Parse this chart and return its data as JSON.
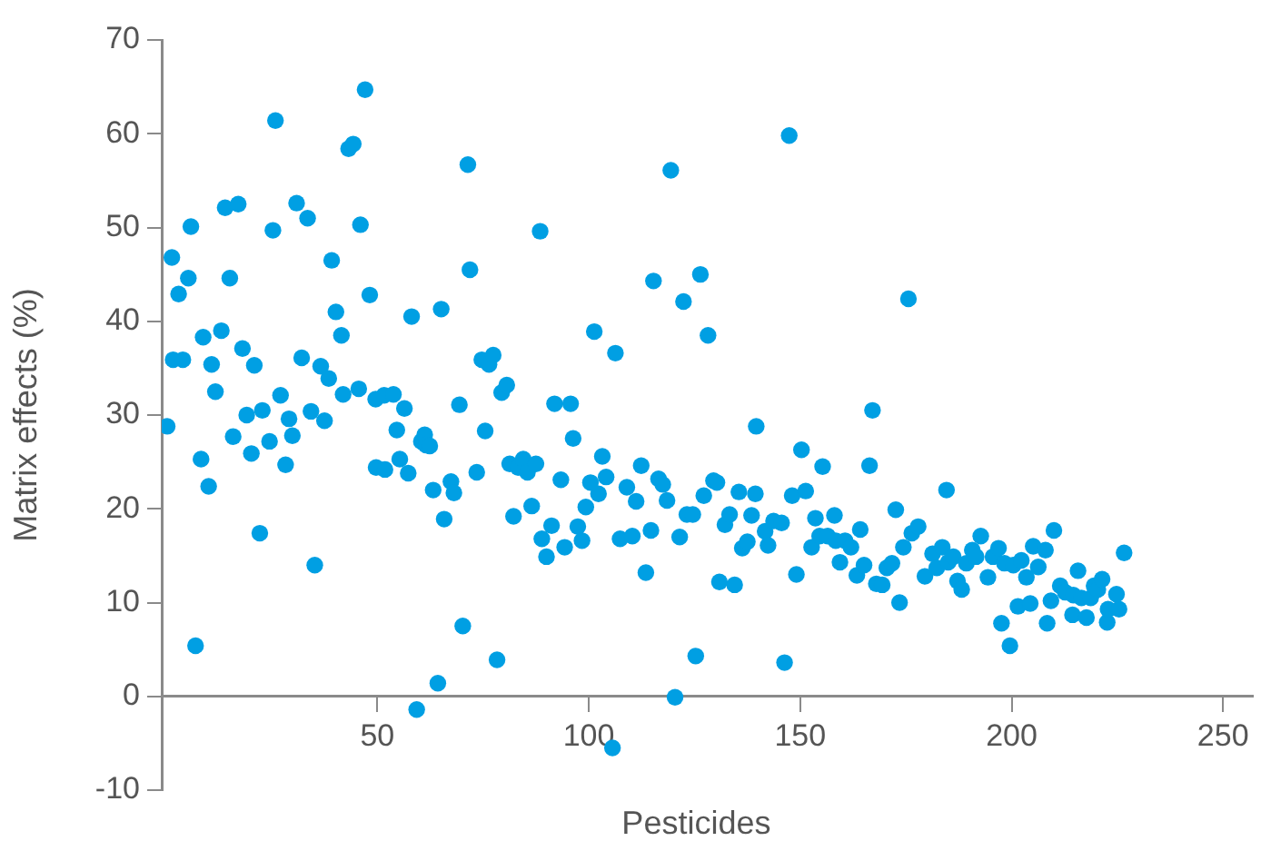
{
  "chart_data": {
    "type": "scatter",
    "xlabel": "Pesticides",
    "ylabel": "Matrix effects (%)",
    "color": "#009fe3",
    "marker": "circle",
    "xlim": [
      -1,
      257
    ],
    "xticks": [
      50,
      100,
      150,
      200,
      250
    ],
    "ylim": [
      -10,
      70
    ],
    "yticks": [
      -10,
      0,
      10,
      20,
      30,
      40,
      50,
      60,
      70
    ],
    "x": [
      0.3,
      1.4,
      1.7,
      3,
      4,
      5.3,
      5.9,
      7,
      8.3,
      8.8,
      10.1,
      10.8,
      11.7,
      13.1,
      14,
      15.1,
      15.9,
      17.1,
      18.1,
      19.1,
      20.2,
      20.9,
      22.2,
      22.8,
      24.5,
      25.3,
      25.9,
      27.1,
      28.3,
      29.1,
      29.9,
      30.9,
      32.1,
      33.5,
      34.3,
      35.2,
      36.6,
      37.5,
      38.5,
      39.2,
      40.2,
      41.5,
      41.9,
      43.2,
      44.3,
      45.6,
      46,
      47.1,
      48.2,
      49.6,
      49.7,
      51.8,
      51.6,
      53.8,
      54.6,
      55.3,
      56.4,
      57.3,
      58.1,
      59.3,
      60.4,
      61.2,
      61.5,
      62.4,
      63.2,
      64.3,
      65.1,
      65.8,
      67.4,
      68.1,
      69.4,
      70.2,
      71.4,
      71.9,
      73.5,
      74.7,
      75.5,
      76.4,
      77.4,
      78.3,
      79.4,
      80.6,
      81.3,
      82.2,
      83.3,
      84.5,
      85.5,
      86.5,
      87.5,
      88.5,
      88.9,
      90,
      91.2,
      91.9,
      93.4,
      94.3,
      95.7,
      96.3,
      97.4,
      98.4,
      99.3,
      100.4,
      101.3,
      102.3,
      103.2,
      104.1,
      105.6,
      106.3,
      107.4,
      109,
      110.3,
      111.2,
      112.4,
      113.5,
      114.7,
      115.3,
      116.5,
      117.5,
      118.5,
      119.4,
      120.4,
      121.5,
      122.4,
      123.2,
      124.6,
      125.3,
      126.4,
      127.2,
      128.2,
      129.5,
      130.3,
      130.9,
      132.2,
      133.3,
      134.5,
      135.5,
      136.3,
      137.5,
      138.5,
      139.4,
      139.6,
      141.7,
      142.4,
      143.7,
      145.6,
      146.3,
      147.4,
      148.1,
      149.1,
      150.3,
      151.3,
      152.7,
      153.6,
      154.6,
      155.3,
      156.5,
      158.1,
      158.4,
      159.4,
      160.6,
      162,
      163.4,
      164.2,
      165.1,
      166.4,
      167.1,
      168,
      169.4,
      170.5,
      171.7,
      172.6,
      173.5,
      174.4,
      175.6,
      176.4,
      177.9,
      179.5,
      181.3,
      182.3,
      183.6,
      184.6,
      185,
      186.2,
      187.2,
      188.2,
      189.3,
      190.7,
      191.6,
      192.7,
      194.4,
      195.6,
      196.9,
      197.6,
      198.3,
      199.6,
      200.4,
      201.5,
      202.3,
      203.5,
      204.4,
      205.1,
      206.3,
      208,
      208.4,
      209.3,
      210,
      211.5,
      212.7,
      214.4,
      214.6,
      215.7,
      216.5,
      217.7,
      218.7,
      219.5,
      220.4,
      221.4,
      222.6,
      222.8,
      224.8,
      225.4,
      226.6
    ],
    "values": [
      28.8,
      46.8,
      35.9,
      42.9,
      35.9,
      44.6,
      50.1,
      5.4,
      25.3,
      38.3,
      22.4,
      35.4,
      32.5,
      39,
      52.1,
      44.6,
      27.7,
      52.5,
      37.1,
      30,
      25.9,
      35.3,
      17.4,
      30.5,
      27.2,
      49.7,
      61.4,
      32.1,
      24.7,
      29.6,
      27.8,
      52.6,
      36.1,
      51,
      30.4,
      14,
      35.2,
      29.4,
      33.9,
      46.5,
      41,
      38.5,
      32.2,
      58.4,
      58.9,
      32.8,
      50.3,
      64.7,
      42.8,
      31.7,
      24.4,
      24.2,
      32.1,
      32.2,
      28.4,
      25.3,
      30.7,
      23.8,
      40.5,
      -1.4,
      27.2,
      27.9,
      26.8,
      26.7,
      22,
      1.4,
      41.3,
      18.9,
      22.9,
      21.7,
      31.1,
      7.5,
      56.7,
      45.5,
      23.9,
      35.9,
      28.3,
      35.4,
      36.4,
      3.9,
      32.4,
      33.2,
      24.8,
      19.2,
      24.4,
      25.3,
      23.9,
      20.3,
      24.8,
      49.6,
      16.8,
      14.9,
      18.2,
      31.2,
      23.1,
      15.9,
      31.2,
      27.5,
      18.1,
      16.6,
      20.2,
      22.8,
      38.9,
      21.6,
      25.6,
      23.4,
      -5.5,
      36.6,
      16.8,
      22.3,
      17.1,
      20.8,
      24.6,
      13.2,
      17.7,
      44.3,
      23.2,
      22.6,
      20.9,
      56.1,
      -0.1,
      17,
      42.1,
      19.4,
      19.4,
      4.3,
      45,
      21.4,
      38.5,
      23,
      22.8,
      12.2,
      18.3,
      19.4,
      11.9,
      21.8,
      15.8,
      16.5,
      19.3,
      21.6,
      28.8,
      17.6,
      16.1,
      18.7,
      18.5,
      3.6,
      59.8,
      21.4,
      13,
      26.3,
      21.9,
      15.9,
      19,
      17.1,
      24.5,
      17.1,
      19.3,
      16.6,
      14.3,
      16.6,
      15.9,
      12.9,
      17.8,
      14,
      24.6,
      30.5,
      12,
      11.9,
      13.7,
      14.2,
      19.9,
      10,
      15.9,
      42.4,
      17.4,
      18.1,
      12.8,
      15.2,
      13.7,
      15.9,
      22,
      14.3,
      14.9,
      12.3,
      11.4,
      14.2,
      15.6,
      14.9,
      17.1,
      12.7,
      14.9,
      15.8,
      7.8,
      14.2,
      5.4,
      14,
      9.6,
      14.5,
      12.7,
      9.9,
      16,
      13.8,
      15.6,
      7.8,
      10.2,
      17.7,
      11.8,
      11.1,
      8.7,
      10.8,
      13.4,
      10.5,
      8.4,
      10.5,
      11.8,
      11.4,
      12.5,
      7.9,
      9.3,
      10.9,
      9.3,
      15.3
    ]
  }
}
